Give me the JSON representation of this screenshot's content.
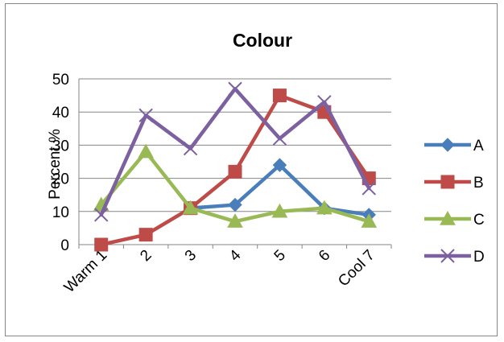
{
  "chart_data": {
    "type": "line",
    "title": "Colour",
    "xlabel": "",
    "ylabel": "Percent %",
    "categories": [
      "Warm 1",
      "2",
      "3",
      "4",
      "5",
      "6",
      "Cool 7"
    ],
    "ylim": [
      0,
      50
    ],
    "yticks": [
      "0",
      "10",
      "20",
      "30",
      "40",
      "50"
    ],
    "grid": true,
    "legend_position": "right",
    "series": [
      {
        "name": "A",
        "color": "#4a7ebb",
        "marker": "diamond",
        "values": [
          null,
          null,
          11,
          12,
          24,
          11,
          9
        ]
      },
      {
        "name": "B",
        "color": "#be4b48",
        "marker": "square",
        "values": [
          0,
          3,
          11,
          22,
          45,
          40,
          20
        ]
      },
      {
        "name": "C",
        "color": "#98b954",
        "marker": "triangle",
        "values": [
          12,
          28,
          11,
          7,
          10,
          11,
          7
        ]
      },
      {
        "name": "D",
        "color": "#7d60a0",
        "marker": "x",
        "values": [
          9,
          39,
          29,
          47,
          32,
          43,
          17
        ]
      }
    ]
  }
}
